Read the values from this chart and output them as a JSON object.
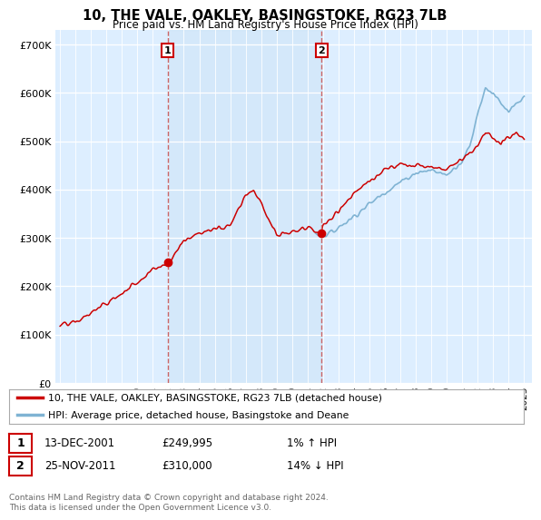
{
  "title": "10, THE VALE, OAKLEY, BASINGSTOKE, RG23 7LB",
  "subtitle": "Price paid vs. HM Land Registry's House Price Index (HPI)",
  "ytick_values": [
    0,
    100000,
    200000,
    300000,
    400000,
    500000,
    600000,
    700000
  ],
  "ylim": [
    0,
    730000
  ],
  "xlim_start": 1994.7,
  "xlim_end": 2025.5,
  "transaction1": {
    "date_x": 2001.96,
    "price": 249995,
    "label": "1",
    "date_str": "13-DEC-2001",
    "price_str": "£249,995",
    "hpi_str": "1% ↑ HPI"
  },
  "transaction2": {
    "date_x": 2011.9,
    "price": 310000,
    "label": "2",
    "date_str": "25-NOV-2011",
    "price_str": "£310,000",
    "hpi_str": "14% ↓ HPI"
  },
  "legend_label_red": "10, THE VALE, OAKLEY, BASINGSTOKE, RG23 7LB (detached house)",
  "legend_label_blue": "HPI: Average price, detached house, Basingstoke and Deane",
  "footer": "Contains HM Land Registry data © Crown copyright and database right 2024.\nThis data is licensed under the Open Government Licence v3.0.",
  "red_color": "#cc0000",
  "blue_color": "#7fb3d3",
  "vline_color": "#cc6666",
  "bg_color": "#ddeeff",
  "bg_highlight": "#cce4f7",
  "xtick_years": [
    1995,
    1996,
    1997,
    1998,
    1999,
    2000,
    2001,
    2002,
    2003,
    2004,
    2005,
    2006,
    2007,
    2008,
    2009,
    2010,
    2011,
    2012,
    2013,
    2014,
    2015,
    2016,
    2017,
    2018,
    2019,
    2020,
    2021,
    2022,
    2023,
    2024,
    2025
  ],
  "hpi_breakpoints_x": [
    1995.0,
    1996.0,
    1997.0,
    1998.0,
    1999.0,
    2000.0,
    2001.0,
    2002.0,
    2003.0,
    2004.0,
    2005.0,
    2006.0,
    2007.0,
    2007.5,
    2008.0,
    2009.0,
    2010.0,
    2011.0,
    2012.0,
    2012.5,
    2013.0,
    2014.0,
    2015.0,
    2016.0,
    2017.0,
    2018.0,
    2019.0,
    2020.0,
    2021.0,
    2021.5,
    2022.0,
    2022.5,
    2023.0,
    2023.5,
    2024.0,
    2024.5,
    2025.0
  ],
  "hpi_breakpoints_y": [
    118000,
    125000,
    137000,
    152000,
    172000,
    202000,
    230000,
    265000,
    295000,
    310000,
    320000,
    335000,
    360000,
    375000,
    355000,
    305000,
    310000,
    315000,
    305000,
    310000,
    322000,
    345000,
    370000,
    395000,
    415000,
    435000,
    440000,
    430000,
    460000,
    490000,
    560000,
    610000,
    600000,
    575000,
    560000,
    575000,
    590000
  ],
  "red_breakpoints_x": [
    1995.0,
    1996.0,
    1997.0,
    1998.0,
    1999.0,
    2000.0,
    2001.0,
    2001.96,
    2002.5,
    2003.0,
    2004.0,
    2005.0,
    2006.0,
    2007.0,
    2007.5,
    2008.0,
    2009.0,
    2010.0,
    2011.0,
    2011.9,
    2012.0,
    2013.0,
    2014.0,
    2015.0,
    2016.0,
    2017.0,
    2018.0,
    2019.0,
    2020.0,
    2021.0,
    2022.0,
    2022.5,
    2023.0,
    2023.5,
    2024.0,
    2024.5,
    2025.0
  ],
  "red_breakpoints_y": [
    118000,
    125000,
    145000,
    165000,
    185000,
    210000,
    235000,
    249995,
    270000,
    295000,
    310000,
    318000,
    328000,
    390000,
    400000,
    370000,
    305000,
    310000,
    320000,
    310000,
    325000,
    355000,
    395000,
    415000,
    440000,
    455000,
    450000,
    445000,
    445000,
    465000,
    490000,
    520000,
    510000,
    490000,
    510000,
    515000,
    505000
  ]
}
